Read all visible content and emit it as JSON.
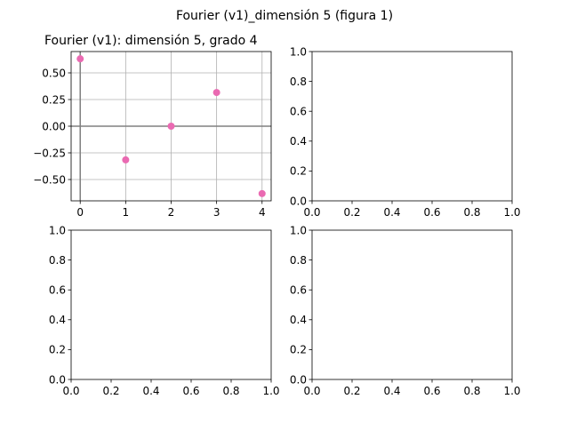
{
  "figure": {
    "suptitle": "Fourier (v1)_dimensión 5 (figura 1)"
  },
  "chart_data": [
    {
      "type": "scatter",
      "title": "Fourier (v1): dimensión 5, grado 4",
      "x": [
        0,
        1,
        2,
        3,
        4
      ],
      "y": [
        0.632,
        -0.316,
        0.0,
        0.316,
        -0.632
      ],
      "xlim": [
        -0.2,
        4.2
      ],
      "ylim": [
        -0.7,
        0.7
      ],
      "xticks": [
        0,
        1,
        2,
        3,
        4
      ],
      "xtick_labels": [
        "0",
        "1",
        "2",
        "3",
        "4"
      ],
      "yticks": [
        -0.5,
        -0.25,
        0,
        0.25,
        0.5
      ],
      "ytick_labels": [
        "−0.50",
        "−0.25",
        "0.00",
        "0.25",
        "0.50"
      ],
      "grid": true,
      "zero_lines": true,
      "marker_color": "#ea6ab2",
      "axis_line_color": "#808080",
      "grid_color": "#b0b0b0"
    },
    {
      "type": "scatter",
      "title": "",
      "x": [],
      "y": [],
      "xlim": [
        0,
        1
      ],
      "ylim": [
        0,
        1
      ],
      "xticks": [
        0,
        0.2,
        0.4,
        0.6,
        0.8,
        1.0
      ],
      "xtick_labels": [
        "0.0",
        "0.2",
        "0.4",
        "0.6",
        "0.8",
        "1.0"
      ],
      "yticks": [
        0,
        0.2,
        0.4,
        0.6,
        0.8,
        1.0
      ],
      "ytick_labels": [
        "0.0",
        "0.2",
        "0.4",
        "0.6",
        "0.8",
        "1.0"
      ],
      "grid": false
    },
    {
      "type": "scatter",
      "title": "",
      "x": [],
      "y": [],
      "xlim": [
        0,
        1
      ],
      "ylim": [
        0,
        1
      ],
      "xticks": [
        0,
        0.2,
        0.4,
        0.6,
        0.8,
        1.0
      ],
      "xtick_labels": [
        "0.0",
        "0.2",
        "0.4",
        "0.6",
        "0.8",
        "1.0"
      ],
      "yticks": [
        0,
        0.2,
        0.4,
        0.6,
        0.8,
        1.0
      ],
      "ytick_labels": [
        "0.0",
        "0.2",
        "0.4",
        "0.6",
        "0.8",
        "1.0"
      ],
      "grid": false
    },
    {
      "type": "scatter",
      "title": "",
      "x": [],
      "y": [],
      "xlim": [
        0,
        1
      ],
      "ylim": [
        0,
        1
      ],
      "xticks": [
        0,
        0.2,
        0.4,
        0.6,
        0.8,
        1.0
      ],
      "xtick_labels": [
        "0.0",
        "0.2",
        "0.4",
        "0.6",
        "0.8",
        "1.0"
      ],
      "yticks": [
        0,
        0.2,
        0.4,
        0.6,
        0.8,
        1.0
      ],
      "ytick_labels": [
        "0.0",
        "0.2",
        "0.4",
        "0.6",
        "0.8",
        "1.0"
      ],
      "grid": false
    }
  ]
}
